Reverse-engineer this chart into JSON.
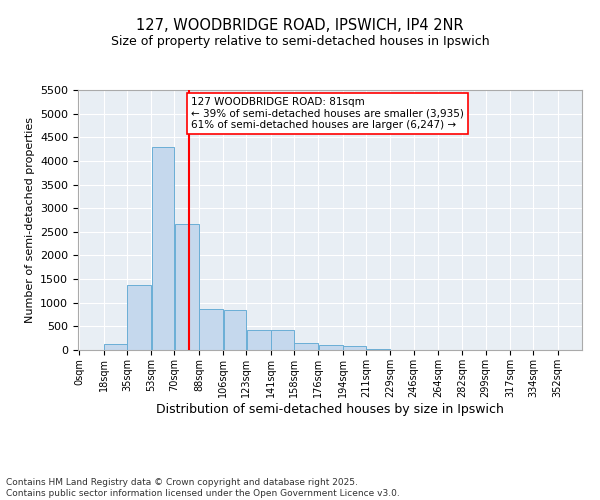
{
  "title_line1": "127, WOODBRIDGE ROAD, IPSWICH, IP4 2NR",
  "title_line2": "Size of property relative to semi-detached houses in Ipswich",
  "xlabel": "Distribution of semi-detached houses by size in Ipswich",
  "ylabel": "Number of semi-detached properties",
  "bins": [
    0,
    18,
    35,
    53,
    70,
    88,
    106,
    123,
    141,
    158,
    176,
    194,
    211,
    229,
    246,
    264,
    282,
    299,
    317,
    334,
    352
  ],
  "counts": [
    10,
    130,
    1380,
    4300,
    2670,
    860,
    850,
    430,
    430,
    155,
    115,
    80,
    20,
    10,
    5,
    3,
    2,
    1,
    1,
    0
  ],
  "bar_color": "#c5d8ed",
  "bar_edge_color": "#6aaed6",
  "property_size": 81,
  "annotation_text": "127 WOODBRIDGE ROAD: 81sqm\n← 39% of semi-detached houses are smaller (3,935)\n61% of semi-detached houses are larger (6,247) →",
  "annotation_box_color": "white",
  "annotation_box_edge_color": "red",
  "vline_color": "red",
  "ylim": [
    0,
    5500
  ],
  "yticks": [
    0,
    500,
    1000,
    1500,
    2000,
    2500,
    3000,
    3500,
    4000,
    4500,
    5000,
    5500
  ],
  "background_color": "#e8eef4",
  "footer_text": "Contains HM Land Registry data © Crown copyright and database right 2025.\nContains public sector information licensed under the Open Government Licence v3.0.",
  "tick_label_fontsize": 7,
  "title1_fontsize": 10.5,
  "title2_fontsize": 9,
  "ylabel_fontsize": 8,
  "xlabel_fontsize": 9,
  "annotation_fontsize": 7.5,
  "footer_fontsize": 6.5
}
